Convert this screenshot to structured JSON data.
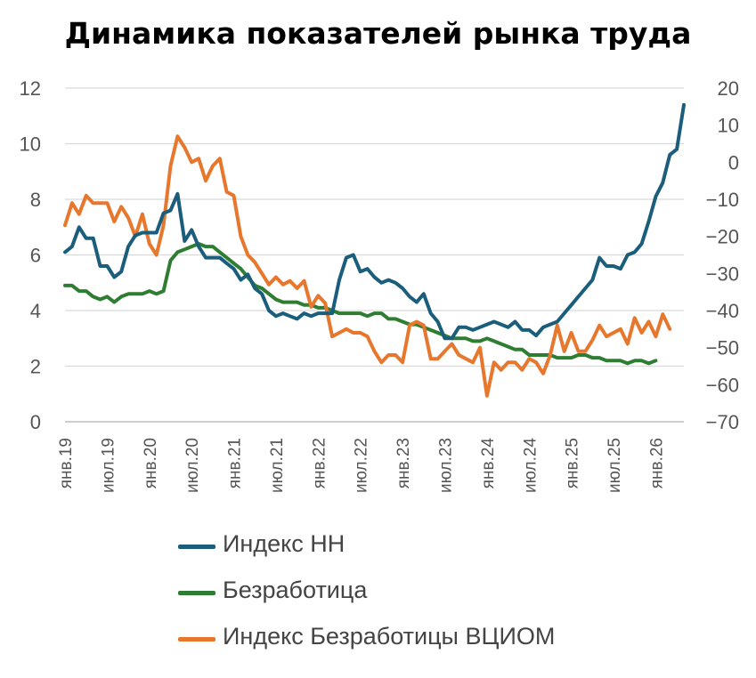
{
  "chart_data": {
    "type": "line",
    "title": "Динамика показателей рынка труда",
    "x_tick_labels": [
      "янв.19",
      "июл.19",
      "янв.20",
      "июл.20",
      "янв.21",
      "июл.21",
      "янв.22",
      "июл.22",
      "янв.23",
      "июл.23",
      "янв.24",
      "июл.24",
      "янв.25",
      "июл.25",
      "янв.26"
    ],
    "y_left": {
      "min": 0,
      "max": 12,
      "step": 2,
      "ticks": [
        "0",
        "2",
        "4",
        "6",
        "8",
        "10",
        "12"
      ]
    },
    "y_right": {
      "min": -70,
      "max": 20,
      "step": 10,
      "ticks": [
        "-70",
        "-60",
        "-50",
        "-40",
        "-30",
        "-20",
        "-10",
        "0",
        "10",
        "20"
      ]
    },
    "grid": true,
    "legend_position": "bottom",
    "series": [
      {
        "name": "Индекс НН",
        "color": "#1B5E7C",
        "axis": "left",
        "values": [
          6.1,
          6.3,
          7.0,
          6.6,
          6.6,
          5.6,
          5.6,
          5.2,
          5.4,
          6.3,
          6.7,
          6.8,
          6.8,
          6.8,
          7.5,
          7.6,
          8.2,
          6.5,
          6.9,
          6.3,
          5.9,
          5.9,
          5.9,
          5.7,
          5.5,
          5.1,
          5.3,
          4.8,
          4.6,
          4.0,
          3.8,
          3.9,
          3.8,
          3.7,
          3.9,
          3.8,
          3.9,
          3.9,
          3.9,
          5.1,
          5.9,
          6.0,
          5.4,
          5.5,
          5.2,
          5.0,
          5.1,
          5.0,
          4.8,
          4.5,
          4.3,
          4.6,
          3.9,
          3.6,
          3.0,
          3.0,
          3.4,
          3.4,
          3.3,
          3.4,
          3.5,
          3.6,
          3.5,
          3.4,
          3.6,
          3.3,
          3.3,
          3.1,
          3.4,
          3.5,
          3.6,
          3.9,
          4.2,
          4.5,
          4.8,
          5.1,
          5.9,
          5.6,
          5.6,
          5.5,
          6.0,
          6.1,
          6.4,
          7.2,
          8.1,
          8.6,
          9.6,
          9.8,
          11.4
        ]
      },
      {
        "name": "Безработица",
        "color": "#2E7D32",
        "axis": "left",
        "values": [
          4.9,
          4.9,
          4.7,
          4.7,
          4.5,
          4.4,
          4.5,
          4.3,
          4.5,
          4.6,
          4.6,
          4.6,
          4.7,
          4.6,
          4.7,
          5.8,
          6.1,
          6.2,
          6.3,
          6.4,
          6.3,
          6.3,
          6.1,
          5.9,
          5.7,
          5.5,
          5.2,
          4.9,
          4.8,
          4.6,
          4.4,
          4.3,
          4.3,
          4.3,
          4.2,
          4.2,
          4.1,
          4.1,
          4.0,
          3.9,
          3.9,
          3.9,
          3.9,
          3.8,
          3.9,
          3.9,
          3.7,
          3.7,
          3.6,
          3.5,
          3.5,
          3.4,
          3.3,
          3.2,
          3.1,
          3.0,
          3.0,
          3.0,
          2.9,
          2.9,
          3.0,
          2.9,
          2.8,
          2.7,
          2.6,
          2.6,
          2.4,
          2.4,
          2.4,
          2.4,
          2.3,
          2.3,
          2.3,
          2.4,
          2.4,
          2.3,
          2.3,
          2.2,
          2.2,
          2.2,
          2.1,
          2.2,
          2.2,
          2.1,
          2.2
        ]
      },
      {
        "name": "Индекс Безработицы ВЦИОМ",
        "color": "#E8772E",
        "axis": "right",
        "values": [
          -17,
          -11,
          -14,
          -9,
          -11,
          -11,
          -11,
          -16,
          -12,
          -15,
          -20,
          -14,
          -22,
          -25,
          -17,
          -1,
          7,
          4,
          0,
          1,
          -5,
          -1,
          1,
          -8,
          -9,
          -20,
          -25,
          -27,
          -30,
          -33,
          -31,
          -33,
          -32,
          -34,
          -32,
          -39,
          -36,
          -38,
          -47,
          -46,
          -45,
          -46,
          -46,
          -47,
          -51,
          -54,
          -52,
          -52,
          -54,
          -44,
          -43,
          -44,
          -53,
          -53,
          -51,
          -49,
          -52,
          -53,
          -54,
          -50,
          -63,
          -54,
          -56,
          -54,
          -54,
          -56,
          -53,
          -54,
          -57,
          -52,
          -44,
          -51,
          -46,
          -51,
          -51,
          -48,
          -44,
          -47,
          -46,
          -45,
          -49,
          -42,
          -46,
          -43,
          -47,
          -41,
          -45
        ]
      }
    ]
  }
}
